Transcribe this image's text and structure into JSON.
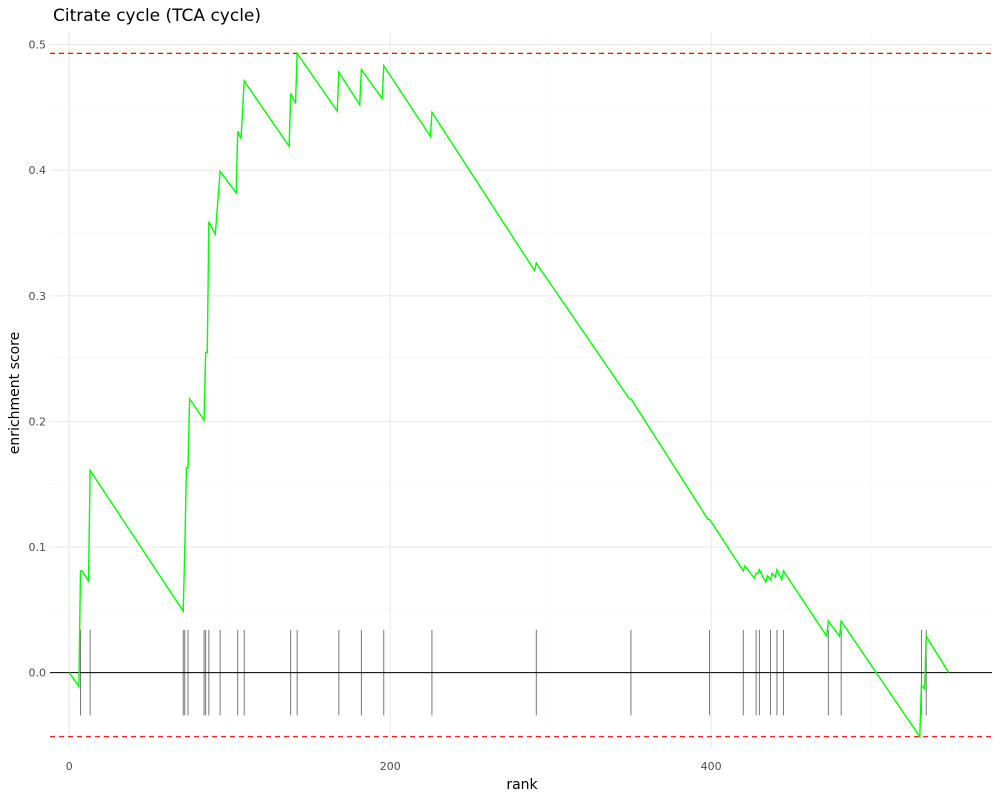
{
  "chart_data": {
    "type": "line",
    "title": "Citrate cycle (TCA cycle)",
    "xlabel": "rank",
    "ylabel": "enrichment score",
    "xlim": [
      -12,
      575
    ],
    "ylim": [
      -0.06,
      0.51
    ],
    "x_ticks": [
      0,
      200,
      400
    ],
    "x_tick_labels": [
      "0",
      "200",
      "400"
    ],
    "y_ticks": [
      0.0,
      0.1,
      0.2,
      0.3,
      0.4,
      0.5
    ],
    "y_tick_labels": [
      "0.0",
      "0.1",
      "0.2",
      "0.3",
      "0.4",
      "0.5"
    ],
    "grid": true,
    "colors": {
      "running_score": "#00ff00",
      "max_min_lines": "#ff0000",
      "zero_line": "#000000",
      "gene_hits": "#555555"
    },
    "running_score": {
      "x": [
        0,
        6,
        7,
        8,
        12,
        13,
        71,
        72,
        73,
        74,
        75,
        84,
        85,
        86,
        87,
        91,
        94,
        104,
        105,
        107,
        109,
        137,
        138,
        141,
        142,
        167,
        168,
        181,
        182,
        195,
        196,
        225,
        226,
        290,
        291,
        349,
        350,
        398,
        399,
        420,
        421,
        427,
        428,
        429,
        430,
        434,
        435,
        437,
        438,
        440,
        441,
        444,
        445,
        472,
        473,
        480,
        481,
        530,
        531,
        533,
        534,
        548
      ],
      "y": [
        0.0,
        -0.011,
        0.081,
        0.081,
        0.073,
        0.161,
        0.049,
        0.098,
        0.163,
        0.163,
        0.218,
        0.201,
        0.255,
        0.255,
        0.359,
        0.349,
        0.399,
        0.382,
        0.431,
        0.425,
        0.471,
        0.419,
        0.461,
        0.453,
        0.493,
        0.447,
        0.478,
        0.452,
        0.48,
        0.457,
        0.483,
        0.427,
        0.446,
        0.32,
        0.326,
        0.218,
        0.218,
        0.122,
        0.122,
        0.081,
        0.085,
        0.075,
        0.079,
        0.079,
        0.082,
        0.072,
        0.077,
        0.074,
        0.079,
        0.076,
        0.082,
        0.074,
        0.081,
        0.029,
        0.041,
        0.029,
        0.041,
        -0.051,
        -0.01,
        -0.013,
        0.029,
        0.0
      ]
    },
    "hit_ranks": [
      7,
      13,
      71,
      72,
      74,
      84,
      85,
      87,
      94,
      105,
      109,
      138,
      142,
      168,
      182,
      196,
      226,
      291,
      350,
      399,
      420,
      428,
      430,
      437,
      441,
      445,
      473,
      481,
      531,
      534
    ],
    "max_es": 0.493,
    "min_es": -0.051
  }
}
